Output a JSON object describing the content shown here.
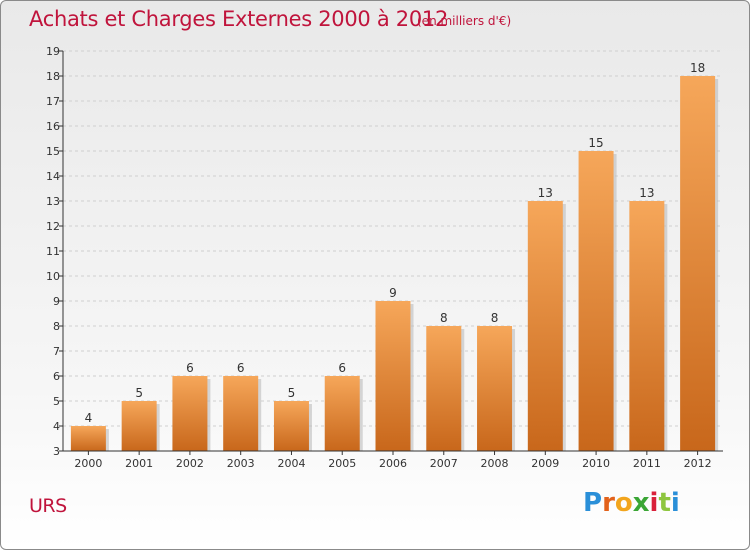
{
  "header": {
    "title": "Achats et Charges Externes 2000 à 2012",
    "subtitle": "(en milliers d'€)"
  },
  "footer": {
    "commune": "URS",
    "logo_letters": [
      "P",
      "r",
      "o",
      "x",
      "i",
      "t",
      "i"
    ],
    "logo_colors": [
      "#2a8fd8",
      "#e2621b",
      "#f2a51d",
      "#3aa635",
      "#d9203a",
      "#8ec63f",
      "#2a8fd8"
    ]
  },
  "colors": {
    "bar_top": "#f6a75a",
    "bar_bottom": "#c8671b",
    "bar_shadow": "#bdbdbd",
    "grid": "#cfcfcf",
    "axis": "#333333",
    "title": "#c0143c"
  },
  "chart_data": {
    "type": "bar",
    "title": "Achats et Charges Externes 2000 à 2012",
    "subtitle": "(en milliers d'€)",
    "xlabel": "",
    "ylabel": "",
    "categories": [
      "2000",
      "2001",
      "2002",
      "2003",
      "2004",
      "2005",
      "2006",
      "2007",
      "2008",
      "2009",
      "2010",
      "2011",
      "2012"
    ],
    "values": [
      4,
      5,
      6,
      6,
      5,
      6,
      9,
      8,
      8,
      13,
      15,
      13,
      18
    ],
    "ylim": [
      3,
      19
    ],
    "yticks": [
      3,
      4,
      5,
      6,
      7,
      8,
      9,
      10,
      11,
      12,
      13,
      14,
      15,
      16,
      17,
      18,
      19
    ],
    "grid": true,
    "data_labels": true
  }
}
